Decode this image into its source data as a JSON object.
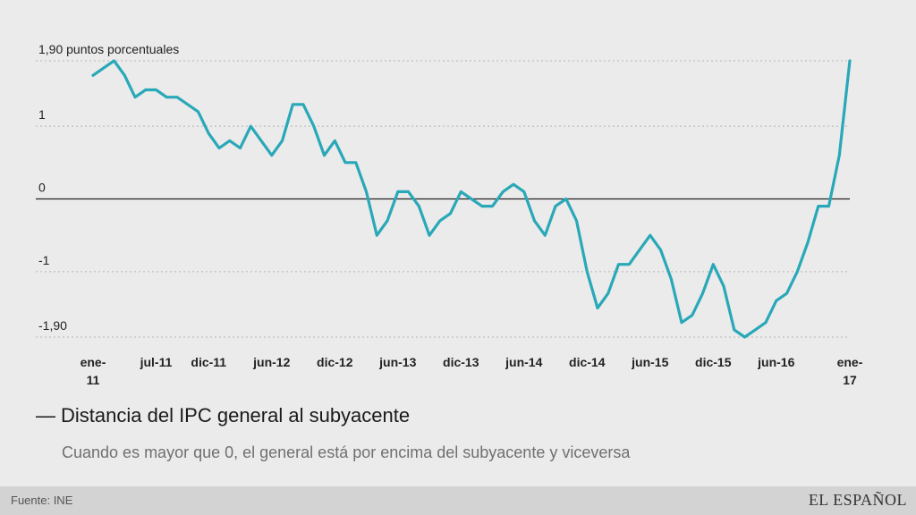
{
  "chart_data": {
    "type": "line",
    "title": "Distancia del IPC general al subyacente",
    "subtitle": "Cuando es mayor que 0, el general está por encima del subyacente y viceversa",
    "ylabel": "puntos porcentuales",
    "ylim": [
      -1.9,
      1.9
    ],
    "y_ticks": [
      {
        "value": 1.9,
        "label": "1,90 puntos porcentuales"
      },
      {
        "value": 1,
        "label": "1"
      },
      {
        "value": 0,
        "label": "0"
      },
      {
        "value": -1,
        "label": "-1"
      },
      {
        "value": -1.9,
        "label": "-1,90"
      }
    ],
    "x_ticks": [
      {
        "index": 0,
        "line1": "ene-",
        "line2": "11"
      },
      {
        "index": 6,
        "line1": "jul-11",
        "line2": ""
      },
      {
        "index": 11,
        "line1": "dic-11",
        "line2": ""
      },
      {
        "index": 17,
        "line1": "jun-12",
        "line2": ""
      },
      {
        "index": 23,
        "line1": "dic-12",
        "line2": ""
      },
      {
        "index": 29,
        "line1": "jun-13",
        "line2": ""
      },
      {
        "index": 35,
        "line1": "dic-13",
        "line2": ""
      },
      {
        "index": 41,
        "line1": "jun-14",
        "line2": ""
      },
      {
        "index": 47,
        "line1": "dic-14",
        "line2": ""
      },
      {
        "index": 53,
        "line1": "jun-15",
        "line2": ""
      },
      {
        "index": 59,
        "line1": "dic-15",
        "line2": ""
      },
      {
        "index": 65,
        "line1": "jun-16",
        "line2": ""
      },
      {
        "index": 72,
        "line1": "ene-",
        "line2": "17"
      }
    ],
    "series": [
      {
        "name": "Distancia del IPC general al subyacente",
        "color": "#29a8b8",
        "start": "ene-11",
        "values": [
          1.7,
          1.8,
          1.9,
          1.7,
          1.4,
          1.5,
          1.5,
          1.4,
          1.4,
          1.3,
          1.2,
          0.9,
          0.7,
          0.8,
          0.7,
          1.0,
          0.8,
          0.6,
          0.8,
          1.3,
          1.3,
          1.0,
          0.6,
          0.8,
          0.5,
          0.5,
          0.1,
          -0.5,
          -0.3,
          0.1,
          0.1,
          -0.1,
          -0.5,
          -0.3,
          -0.2,
          0.1,
          0.0,
          -0.1,
          -0.1,
          0.1,
          0.2,
          0.1,
          -0.3,
          -0.5,
          -0.1,
          0.0,
          -0.3,
          -1.0,
          -1.5,
          -1.3,
          -0.9,
          -0.9,
          -0.7,
          -0.5,
          -0.7,
          -1.1,
          -1.7,
          -1.6,
          -1.3,
          -0.9,
          -1.2,
          -1.8,
          -1.9,
          -1.8,
          -1.7,
          -1.4,
          -1.3,
          -1.0,
          -0.6,
          -0.1,
          -0.1,
          0.6,
          1.9
        ]
      }
    ]
  },
  "footer": {
    "source": "Fuente: INE",
    "brand": "EL ESPAÑOL"
  },
  "colors": {
    "background": "#ebebeb",
    "line": "#29a8b8",
    "footer_bg": "#d3d3d3"
  }
}
